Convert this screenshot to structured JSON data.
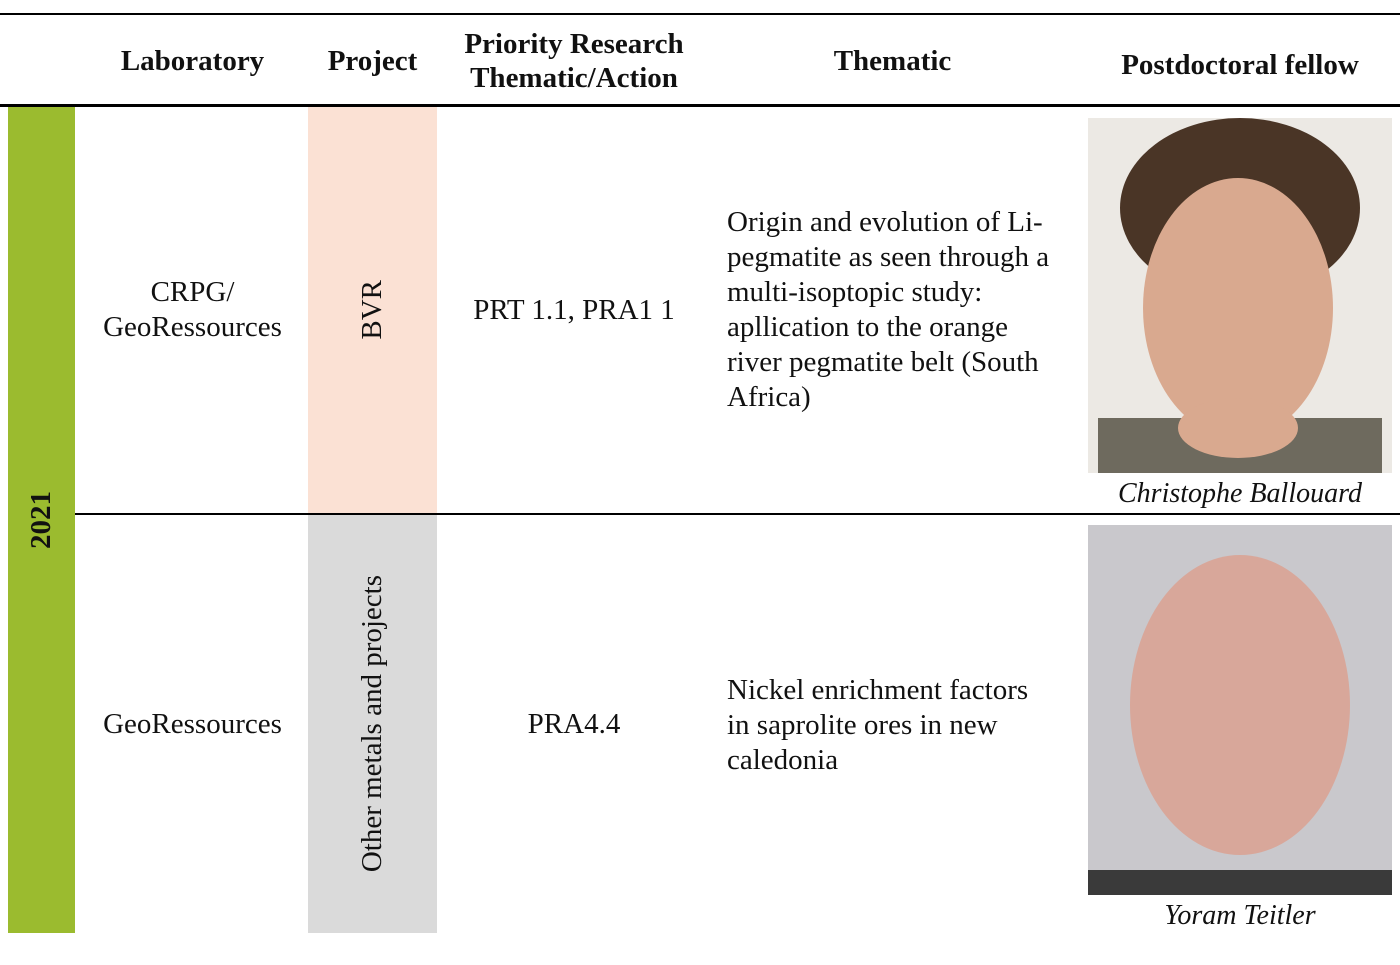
{
  "table": {
    "header": [
      "Laboratory",
      "Project",
      "Priority Research Thematic/Action",
      "Thematic",
      "Postdoctoral fellow"
    ],
    "year": "2021",
    "rows": [
      [
        "CRPG/ GeoRessources",
        "BVR",
        "PRT 1.1, PRA1 1",
        "Origin and evolution of Li-pegmatite as seen through a multi-isoptopic study: apllication to the orange river pegmatite belt (South Africa)",
        "Christophe Ballouard"
      ],
      [
        "GeoRessources",
        "Other metals and projects",
        "PRA4.4",
        "Nickel enrichment factors in saprolite ores in new caledonia",
        "Yoram Teitler"
      ]
    ]
  }
}
